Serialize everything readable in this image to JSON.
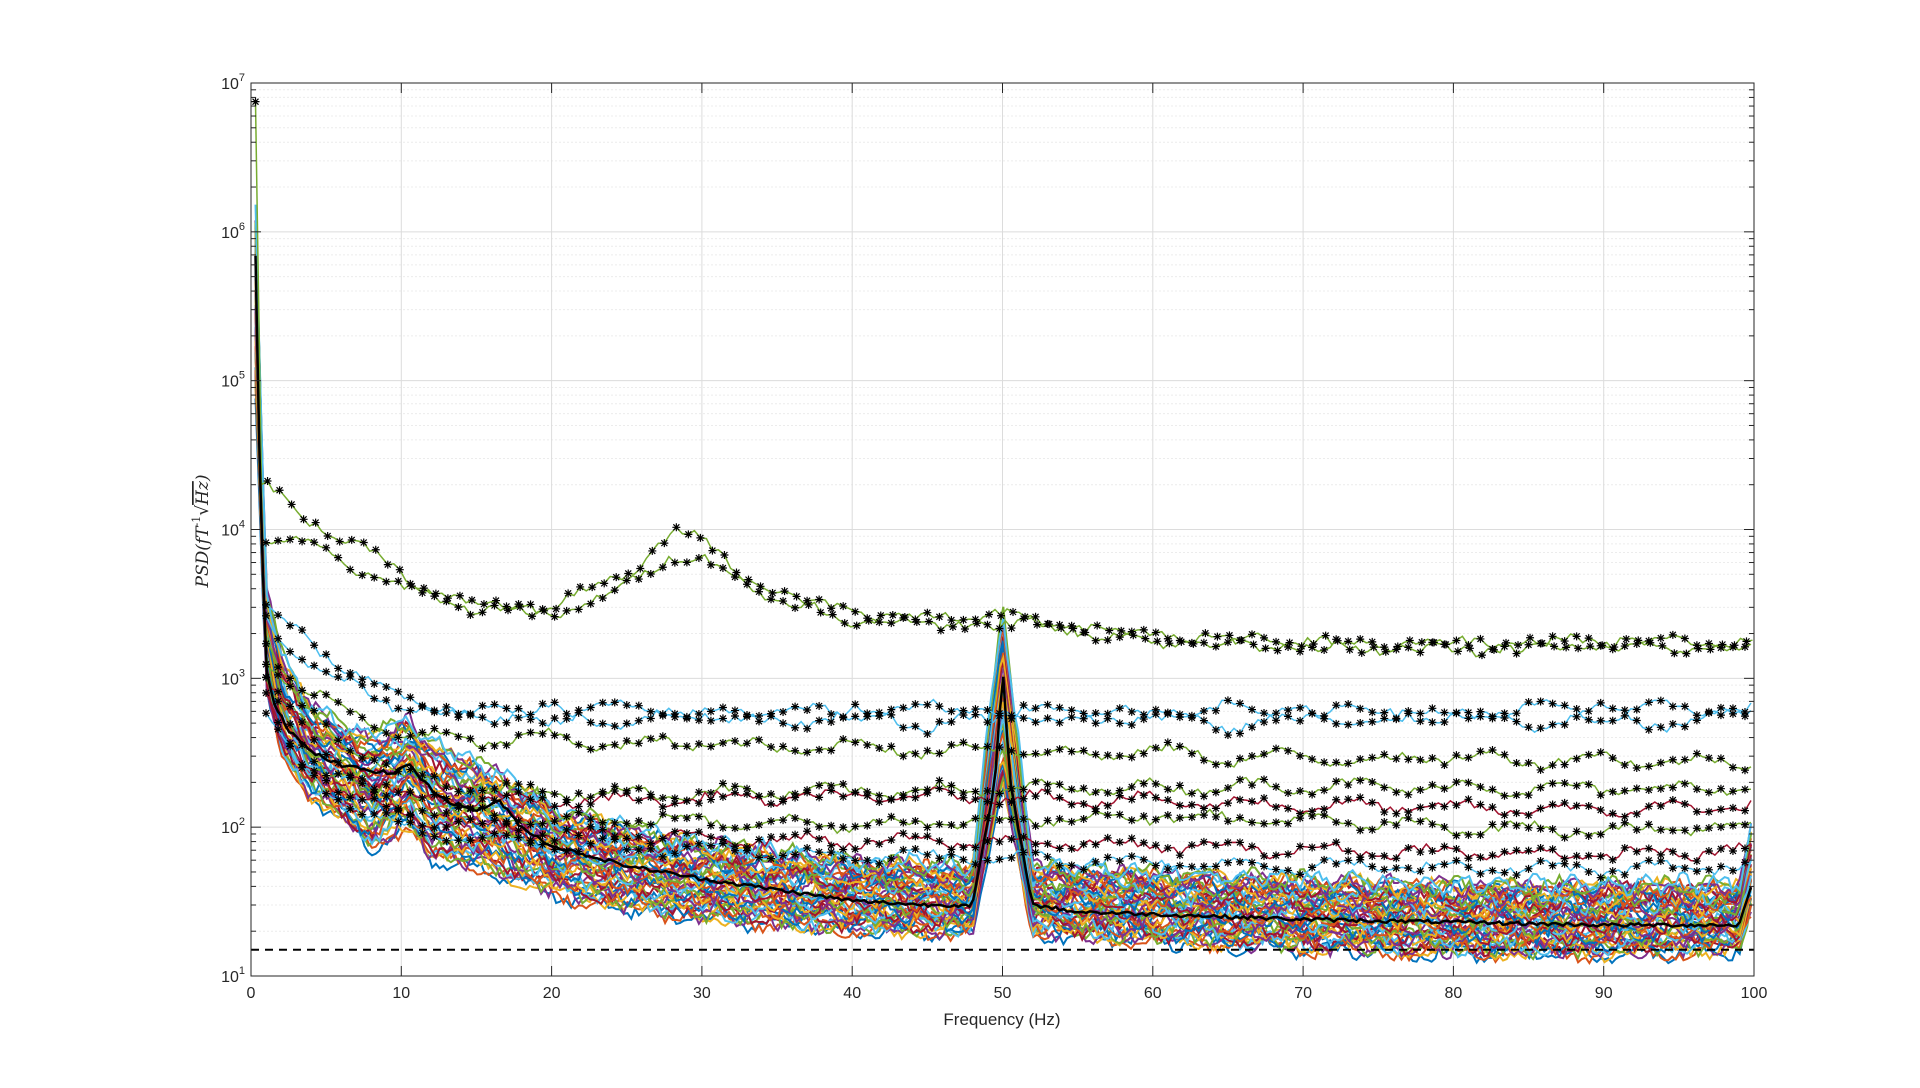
{
  "chart_data": {
    "type": "line",
    "title": "",
    "xlabel": "Frequency (Hz)",
    "ylabel": {
      "text": "PSD(fT",
      "sqrt_symbol": "√",
      "radicand": "Hz",
      "close": ")",
      "superscript": "-1"
    },
    "xlim": [
      0,
      100
    ],
    "ylim": [
      10,
      10000000
    ],
    "yscale": "log",
    "grid": true,
    "minor_grid": true,
    "legend": "none",
    "x_ticks": [
      "0",
      "10",
      "20",
      "30",
      "40",
      "50",
      "60",
      "70",
      "80",
      "90",
      "100"
    ],
    "y_ticks": [
      {
        "base": "10",
        "exp": "1"
      },
      {
        "base": "10",
        "exp": "2"
      },
      {
        "base": "10",
        "exp": "3"
      },
      {
        "base": "10",
        "exp": "4"
      },
      {
        "base": "10",
        "exp": "5"
      },
      {
        "base": "10",
        "exp": "6"
      },
      {
        "base": "10",
        "exp": "7"
      }
    ],
    "reference_line": {
      "y": 15,
      "style": "dashed",
      "color": "#000000"
    },
    "mean_series": {
      "name": "",
      "color": "#000000",
      "points": [
        [
          0.3,
          700000
        ],
        [
          0.6,
          20000
        ],
        [
          1,
          1200
        ],
        [
          1.5,
          700
        ],
        [
          2.5,
          450
        ],
        [
          4,
          320
        ],
        [
          6,
          260
        ],
        [
          8,
          240
        ],
        [
          9.5,
          230
        ],
        [
          10.5,
          270
        ],
        [
          11.5,
          200
        ],
        [
          13,
          150
        ],
        [
          15,
          130
        ],
        [
          16.5,
          150
        ],
        [
          18,
          100
        ],
        [
          20,
          75
        ],
        [
          25,
          55
        ],
        [
          30,
          45
        ],
        [
          35,
          38
        ],
        [
          40,
          32
        ],
        [
          45,
          30
        ],
        [
          48,
          30
        ],
        [
          49.5,
          200
        ],
        [
          50,
          1200
        ],
        [
          50.5,
          200
        ],
        [
          52,
          30
        ],
        [
          55,
          27
        ],
        [
          60,
          26
        ],
        [
          65,
          25
        ],
        [
          70,
          24
        ],
        [
          75,
          23.5
        ],
        [
          80,
          23
        ],
        [
          85,
          22.5
        ],
        [
          90,
          22
        ],
        [
          95,
          22
        ],
        [
          99,
          22
        ],
        [
          100,
          45
        ]
      ]
    },
    "channel_envelope": {
      "color_cycle": [
        "#0072BD",
        "#D95319",
        "#EDB120",
        "#7E2F8E",
        "#77AC30",
        "#4DBEEE",
        "#A2142F"
      ],
      "count": 48,
      "upper": [
        [
          0.3,
          1500000
        ],
        [
          1,
          4000
        ],
        [
          2,
          1500
        ],
        [
          4,
          650
        ],
        [
          6,
          500
        ],
        [
          8,
          420
        ],
        [
          10.5,
          550
        ],
        [
          12,
          380
        ],
        [
          16,
          250
        ],
        [
          20,
          140
        ],
        [
          25,
          100
        ],
        [
          30,
          80
        ],
        [
          40,
          60
        ],
        [
          48,
          55
        ],
        [
          50,
          3200
        ],
        [
          52,
          55
        ],
        [
          60,
          50
        ],
        [
          70,
          45
        ],
        [
          80,
          42
        ],
        [
          90,
          42
        ],
        [
          99,
          42
        ],
        [
          100,
          120
        ]
      ],
      "lower": [
        [
          0.3,
          80000
        ],
        [
          1,
          900
        ],
        [
          2,
          300
        ],
        [
          4,
          160
        ],
        [
          6,
          110
        ],
        [
          8,
          70
        ],
        [
          10.5,
          100
        ],
        [
          12,
          60
        ],
        [
          16,
          50
        ],
        [
          20,
          35
        ],
        [
          25,
          28
        ],
        [
          30,
          24
        ],
        [
          40,
          20
        ],
        [
          48,
          19
        ],
        [
          50,
          200
        ],
        [
          52,
          19
        ],
        [
          60,
          17
        ],
        [
          70,
          15
        ],
        [
          80,
          14
        ],
        [
          90,
          14
        ],
        [
          99,
          15
        ],
        [
          100,
          30
        ]
      ]
    },
    "flagged_channels": [
      {
        "color": "#77AC30",
        "points": [
          [
            0.3,
            7000000
          ],
          [
            0.6,
            20000
          ],
          [
            2,
            16000
          ],
          [
            5,
            10000
          ],
          [
            8,
            7000
          ],
          [
            10,
            5000
          ],
          [
            12,
            4000
          ],
          [
            15,
            3000
          ],
          [
            20,
            3000
          ],
          [
            25,
            5000
          ],
          [
            28,
            9500
          ],
          [
            30,
            8500
          ],
          [
            33,
            5000
          ],
          [
            36,
            3300
          ],
          [
            40,
            2500
          ],
          [
            45,
            2300
          ],
          [
            50,
            2600
          ],
          [
            55,
            2200
          ],
          [
            60,
            1800
          ],
          [
            70,
            1700
          ],
          [
            80,
            1600
          ],
          [
            90,
            1700
          ],
          [
            100,
            1600
          ]
        ]
      },
      {
        "color": "#77AC30",
        "points": [
          [
            1,
            9000
          ],
          [
            5,
            7000
          ],
          [
            10,
            4000
          ],
          [
            15,
            3000
          ],
          [
            20,
            2700
          ],
          [
            25,
            4000
          ],
          [
            28,
            7000
          ],
          [
            30,
            6500
          ],
          [
            33,
            4000
          ],
          [
            40,
            2700
          ],
          [
            50,
            2400
          ],
          [
            60,
            1900
          ],
          [
            70,
            1700
          ],
          [
            80,
            1650
          ],
          [
            90,
            1750
          ],
          [
            100,
            1700
          ]
        ]
      },
      {
        "color": "#4DBEEE",
        "points": [
          [
            1,
            3000
          ],
          [
            3,
            2000
          ],
          [
            5,
            1400
          ],
          [
            8,
            1000
          ],
          [
            10,
            700
          ],
          [
            12,
            650
          ],
          [
            15,
            600
          ],
          [
            20,
            550
          ],
          [
            25,
            650
          ],
          [
            30,
            550
          ],
          [
            35,
            650
          ],
          [
            40,
            550
          ],
          [
            45,
            650
          ],
          [
            50,
            550
          ],
          [
            55,
            650
          ],
          [
            60,
            550
          ],
          [
            65,
            650
          ],
          [
            70,
            550
          ],
          [
            75,
            650
          ],
          [
            80,
            550
          ],
          [
            85,
            650
          ],
          [
            90,
            550
          ],
          [
            95,
            650
          ],
          [
            100,
            600
          ]
        ]
      },
      {
        "color": "#4DBEEE",
        "points": [
          [
            1,
            2500
          ],
          [
            3,
            1500
          ],
          [
            5,
            1000
          ],
          [
            8,
            800
          ],
          [
            10,
            650
          ],
          [
            12,
            600
          ],
          [
            15,
            550
          ],
          [
            20,
            600
          ],
          [
            25,
            500
          ],
          [
            30,
            600
          ],
          [
            35,
            480
          ],
          [
            40,
            600
          ],
          [
            45,
            480
          ],
          [
            50,
            600
          ],
          [
            55,
            480
          ],
          [
            60,
            600
          ],
          [
            65,
            470
          ],
          [
            70,
            600
          ],
          [
            75,
            470
          ],
          [
            80,
            600
          ],
          [
            85,
            470
          ],
          [
            90,
            600
          ],
          [
            95,
            470
          ],
          [
            100,
            650
          ]
        ]
      },
      {
        "color": "#77AC30",
        "points": [
          [
            1,
            1800
          ],
          [
            3,
            900
          ],
          [
            5,
            700
          ],
          [
            8,
            500
          ],
          [
            10,
            420
          ],
          [
            12,
            400
          ],
          [
            15,
            380
          ],
          [
            20,
            400
          ],
          [
            25,
            350
          ],
          [
            30,
            380
          ],
          [
            35,
            330
          ],
          [
            40,
            360
          ],
          [
            45,
            320
          ],
          [
            50,
            350
          ],
          [
            55,
            300
          ],
          [
            60,
            330
          ],
          [
            65,
            290
          ],
          [
            70,
            300
          ],
          [
            75,
            280
          ],
          [
            80,
            300
          ],
          [
            85,
            280
          ],
          [
            90,
            290
          ],
          [
            95,
            270
          ],
          [
            100,
            280
          ]
        ]
      },
      {
        "color": "#77AC30",
        "points": [
          [
            1,
            1400
          ],
          [
            3,
            700
          ],
          [
            5,
            450
          ],
          [
            8,
            300
          ],
          [
            10,
            220
          ],
          [
            15,
            180
          ],
          [
            20,
            170
          ],
          [
            30,
            170
          ],
          [
            40,
            175
          ],
          [
            50,
            180
          ],
          [
            60,
            185
          ],
          [
            70,
            190
          ],
          [
            80,
            185
          ],
          [
            90,
            180
          ],
          [
            100,
            185
          ]
        ]
      },
      {
        "color": "#A2142F",
        "points": [
          [
            1,
            1100
          ],
          [
            3,
            500
          ],
          [
            5,
            300
          ],
          [
            8,
            200
          ],
          [
            10,
            160
          ],
          [
            15,
            150
          ],
          [
            20,
            150
          ],
          [
            30,
            155
          ],
          [
            40,
            160
          ],
          [
            50,
            160
          ],
          [
            60,
            150
          ],
          [
            70,
            140
          ],
          [
            80,
            135
          ],
          [
            90,
            130
          ],
          [
            100,
            140
          ]
        ]
      },
      {
        "color": "#77AC30",
        "points": [
          [
            1,
            900
          ],
          [
            3,
            400
          ],
          [
            5,
            250
          ],
          [
            8,
            170
          ],
          [
            10,
            140
          ],
          [
            15,
            120
          ],
          [
            20,
            115
          ],
          [
            30,
            110
          ],
          [
            40,
            105
          ],
          [
            50,
            110
          ],
          [
            60,
            120
          ],
          [
            70,
            110
          ],
          [
            80,
            100
          ],
          [
            90,
            95
          ],
          [
            100,
            100
          ]
        ]
      },
      {
        "color": "#A2142F",
        "points": [
          [
            1,
            700
          ],
          [
            3,
            300
          ],
          [
            6,
            180
          ],
          [
            10,
            120
          ],
          [
            15,
            100
          ],
          [
            20,
            90
          ],
          [
            30,
            85
          ],
          [
            40,
            80
          ],
          [
            50,
            80
          ],
          [
            60,
            75
          ],
          [
            70,
            70
          ],
          [
            80,
            68
          ],
          [
            90,
            65
          ],
          [
            100,
            70
          ]
        ]
      },
      {
        "color": "#4DBEEE",
        "points": [
          [
            1,
            600
          ],
          [
            3,
            260
          ],
          [
            6,
            150
          ],
          [
            10,
            100
          ],
          [
            15,
            85
          ],
          [
            20,
            75
          ],
          [
            30,
            70
          ],
          [
            40,
            65
          ],
          [
            50,
            62
          ],
          [
            60,
            58
          ],
          [
            70,
            55
          ],
          [
            80,
            54
          ],
          [
            90,
            52
          ],
          [
            100,
            55
          ]
        ]
      }
    ]
  }
}
